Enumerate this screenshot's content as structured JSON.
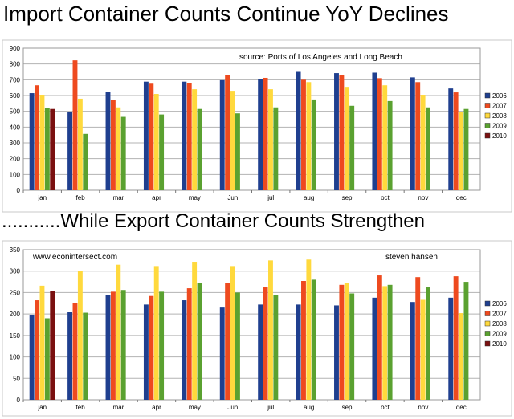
{
  "titles": {
    "import": "Import Container Counts Continue YoY Declines",
    "export": "...........While Export Container Counts Strengthen"
  },
  "colors": {
    "2006": "#1f3f8f",
    "2007": "#ee4a1f",
    "2008": "#ffd93d",
    "2009": "#5aa130",
    "2010": "#7a1010"
  },
  "chart_data": [
    {
      "type": "bar",
      "title": "Import Container Counts Continue YoY Declines",
      "annotations": [
        "source: Ports of Los Angeles and Long Beach"
      ],
      "categories": [
        "jan",
        "feb",
        "mar",
        "apr",
        "may",
        "Jun",
        "jul",
        "aug",
        "sep",
        "oct",
        "nov",
        "dec"
      ],
      "ylim": [
        0,
        900
      ],
      "yticks": [
        0,
        100,
        200,
        300,
        400,
        500,
        600,
        700,
        800,
        900
      ],
      "grid": true,
      "legend": "right",
      "series": [
        {
          "name": "2006",
          "values": [
            615,
            497,
            625,
            688,
            688,
            697,
            705,
            750,
            742,
            745,
            715,
            645
          ]
        },
        {
          "name": "2007",
          "values": [
            665,
            823,
            570,
            675,
            678,
            730,
            712,
            700,
            732,
            710,
            685,
            620
          ]
        },
        {
          "name": "2008",
          "values": [
            605,
            580,
            525,
            610,
            640,
            630,
            640,
            685,
            650,
            665,
            605,
            497
          ]
        },
        {
          "name": "2009",
          "values": [
            520,
            357,
            465,
            480,
            515,
            487,
            525,
            575,
            535,
            565,
            525,
            515
          ]
        },
        {
          "name": "2010",
          "values": [
            515,
            null,
            null,
            null,
            null,
            null,
            null,
            null,
            null,
            null,
            null,
            null
          ]
        }
      ]
    },
    {
      "type": "bar",
      "title": "While Export Container Counts Strengthen",
      "annotations": [
        "www.econintersect.com",
        "steven hansen"
      ],
      "categories": [
        "jan",
        "feb",
        "mar",
        "apr",
        "may",
        "Jun",
        "jul",
        "aug",
        "sep",
        "oct",
        "nov",
        "dec"
      ],
      "ylim": [
        0,
        350
      ],
      "yticks": [
        0,
        50,
        100,
        150,
        200,
        250,
        300,
        350
      ],
      "grid": true,
      "legend": "right",
      "series": [
        {
          "name": "2006",
          "values": [
            198,
            204,
            244,
            222,
            232,
            215,
            222,
            222,
            220,
            238,
            228,
            238
          ]
        },
        {
          "name": "2007",
          "values": [
            232,
            225,
            252,
            242,
            260,
            273,
            262,
            277,
            268,
            290,
            286,
            288
          ]
        },
        {
          "name": "2008",
          "values": [
            266,
            300,
            315,
            310,
            320,
            310,
            325,
            327,
            272,
            265,
            233,
            202
          ]
        },
        {
          "name": "2009",
          "values": [
            190,
            203,
            256,
            252,
            272,
            250,
            245,
            280,
            248,
            268,
            262,
            275
          ]
        },
        {
          "name": "2010",
          "values": [
            253,
            null,
            null,
            null,
            null,
            null,
            null,
            null,
            null,
            null,
            null,
            null
          ]
        }
      ]
    }
  ]
}
